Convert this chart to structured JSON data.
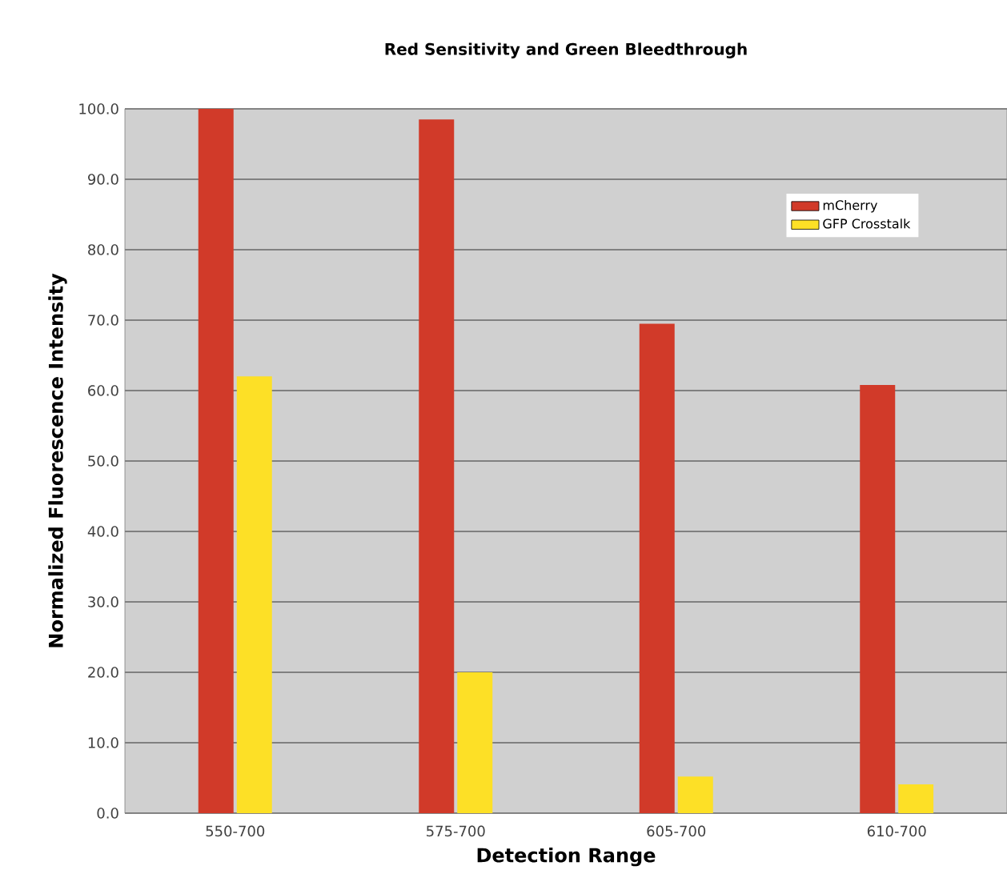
{
  "chart_data": {
    "type": "bar",
    "title": "Red Sensitivity and Green Bleedthrough",
    "xlabel": "Detection Range",
    "ylabel": "Normalized Fluorescence Intensity",
    "categories": [
      "550-700",
      "575-700",
      "605-700",
      "610-700"
    ],
    "series": [
      {
        "name": "mCherry",
        "color": "#d13a29",
        "values": [
          100.0,
          98.5,
          69.5,
          60.8
        ]
      },
      {
        "name": "GFP Crosstalk",
        "color": "#fde026",
        "values": [
          62.0,
          20.0,
          5.2,
          4.1
        ]
      }
    ],
    "ylim": [
      0,
      100
    ],
    "yticks": [
      {
        "value": 0,
        "label": "0.0"
      },
      {
        "value": 10,
        "label": "10.0"
      },
      {
        "value": 20,
        "label": "20.0"
      },
      {
        "value": 30,
        "label": "30.0"
      },
      {
        "value": 40,
        "label": "40.0"
      },
      {
        "value": 50,
        "label": "50.0"
      },
      {
        "value": 60,
        "label": "60.0"
      },
      {
        "value": 70,
        "label": "70.0"
      },
      {
        "value": 80,
        "label": "80.0"
      },
      {
        "value": 90,
        "label": "90.0"
      },
      {
        "value": 100,
        "label": "100.0"
      }
    ],
    "grid": "y",
    "legend": "top right"
  }
}
